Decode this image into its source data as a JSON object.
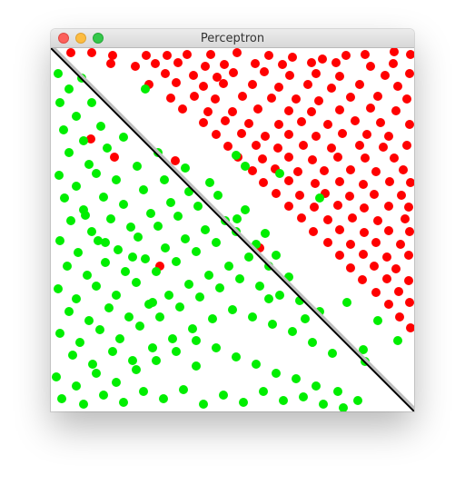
{
  "window": {
    "title": "Perceptron",
    "controls": {
      "close": "close-icon",
      "minimize": "minimize-icon",
      "zoom": "zoom-icon"
    }
  },
  "colors": {
    "class_above": "#ff0000",
    "class_below": "#00ee00",
    "line": "#000000",
    "line_shadow": "#bfbfbf"
  },
  "chart_data": {
    "type": "scatter",
    "title": "",
    "xlabel": "",
    "ylabel": "",
    "xlim": [
      0,
      400
    ],
    "ylim": [
      0,
      400
    ],
    "grid": false,
    "separator": {
      "x": [
        0,
        400
      ],
      "y": [
        400,
        0
      ]
    },
    "series": [
      {
        "class": "above",
        "color": "#ff0000",
        "points": [
          [
            22,
            395
          ],
          [
            45,
            395
          ],
          [
            68,
            392
          ],
          [
            105,
            392
          ],
          [
            128,
            392
          ],
          [
            150,
            393
          ],
          [
            176,
            393
          ],
          [
            205,
            395
          ],
          [
            240,
            392
          ],
          [
            266,
            390
          ],
          [
            299,
            388
          ],
          [
            325,
            392
          ],
          [
            346,
            393
          ],
          [
            378,
            396
          ],
          [
            396,
            393
          ],
          [
            66,
            383
          ],
          [
            93,
            380
          ],
          [
            115,
            383
          ],
          [
            140,
            384
          ],
          [
            170,
            380
          ],
          [
            191,
            382
          ],
          [
            225,
            383
          ],
          [
            255,
            382
          ],
          [
            287,
            384
          ],
          [
            314,
            384
          ],
          [
            352,
            380
          ],
          [
            377,
            383
          ],
          [
            126,
            372
          ],
          [
            157,
            370
          ],
          [
            183,
            368
          ],
          [
            201,
            373
          ],
          [
            235,
            374
          ],
          [
            263,
            370
          ],
          [
            292,
            372
          ],
          [
            318,
            369
          ],
          [
            368,
            370
          ],
          [
            395,
            372
          ],
          [
            108,
            360
          ],
          [
            138,
            362
          ],
          [
            168,
            358
          ],
          [
            190,
            361
          ],
          [
            222,
            360
          ],
          [
            251,
            357
          ],
          [
            283,
            360
          ],
          [
            309,
            356
          ],
          [
            340,
            360
          ],
          [
            382,
            358
          ],
          [
            132,
            345
          ],
          [
            158,
            347
          ],
          [
            181,
            344
          ],
          [
            211,
            347
          ],
          [
            243,
            345
          ],
          [
            270,
            344
          ],
          [
            295,
            342
          ],
          [
            330,
            346
          ],
          [
            360,
            347
          ],
          [
            392,
            344
          ],
          [
            145,
            333
          ],
          [
            173,
            330
          ],
          [
            200,
            330
          ],
          [
            228,
            333
          ],
          [
            262,
            331
          ],
          [
            287,
            330
          ],
          [
            318,
            332
          ],
          [
            352,
            334
          ],
          [
            380,
            331
          ],
          [
            168,
            318
          ],
          [
            192,
            320
          ],
          [
            218,
            317
          ],
          [
            251,
            316
          ],
          [
            276,
            319
          ],
          [
            305,
            316
          ],
          [
            335,
            320
          ],
          [
            363,
            318
          ],
          [
            395,
            316
          ],
          [
            182,
            305
          ],
          [
            210,
            306
          ],
          [
            236,
            303
          ],
          [
            262,
            305
          ],
          [
            292,
            303
          ],
          [
            321,
            306
          ],
          [
            348,
            305
          ],
          [
            372,
            303
          ],
          [
            195,
            292
          ],
          [
            226,
            293
          ],
          [
            250,
            290
          ],
          [
            278,
            293
          ],
          [
            309,
            290
          ],
          [
            340,
            293
          ],
          [
            366,
            291
          ],
          [
            392,
            293
          ],
          [
            206,
            280
          ],
          [
            233,
            278
          ],
          [
            262,
            280
          ],
          [
            288,
            277
          ],
          [
            316,
            280
          ],
          [
            346,
            279
          ],
          [
            378,
            279
          ],
          [
            222,
            265
          ],
          [
            247,
            267
          ],
          [
            272,
            264
          ],
          [
            301,
            265
          ],
          [
            330,
            266
          ],
          [
            358,
            264
          ],
          [
            388,
            266
          ],
          [
            234,
            252
          ],
          [
            262,
            254
          ],
          [
            291,
            251
          ],
          [
            318,
            253
          ],
          [
            344,
            250
          ],
          [
            373,
            253
          ],
          [
            396,
            252
          ],
          [
            248,
            240
          ],
          [
            274,
            238
          ],
          [
            302,
            240
          ],
          [
            329,
            237
          ],
          [
            356,
            239
          ],
          [
            386,
            238
          ],
          [
            262,
            226
          ],
          [
            290,
            225
          ],
          [
            316,
            227
          ],
          [
            345,
            224
          ],
          [
            372,
            226
          ],
          [
            394,
            225
          ],
          [
            276,
            213
          ],
          [
            305,
            211
          ],
          [
            332,
            213
          ],
          [
            360,
            210
          ],
          [
            390,
            212
          ],
          [
            289,
            198
          ],
          [
            318,
            200
          ],
          [
            345,
            197
          ],
          [
            372,
            199
          ],
          [
            395,
            198
          ],
          [
            305,
            186
          ],
          [
            330,
            184
          ],
          [
            358,
            186
          ],
          [
            385,
            184
          ],
          [
            318,
            172
          ],
          [
            344,
            173
          ],
          [
            370,
            170
          ],
          [
            394,
            172
          ],
          [
            330,
            158
          ],
          [
            356,
            160
          ],
          [
            380,
            157
          ],
          [
            343,
            145
          ],
          [
            370,
            146
          ],
          [
            394,
            144
          ],
          [
            358,
            131
          ],
          [
            383,
            132
          ],
          [
            372,
            118
          ],
          [
            395,
            120
          ],
          [
            384,
            104
          ],
          [
            396,
            92
          ],
          [
            44,
            300
          ],
          [
            70,
            280
          ],
          [
            137,
            276
          ],
          [
            230,
            180
          ],
          [
            120,
            160
          ]
        ]
      },
      {
        "class": "below",
        "color": "#00ee00",
        "points": [
          [
            8,
            372
          ],
          [
            20,
            355
          ],
          [
            34,
            367
          ],
          [
            10,
            340
          ],
          [
            28,
            325
          ],
          [
            45,
            340
          ],
          [
            14,
            310
          ],
          [
            36,
            298
          ],
          [
            55,
            314
          ],
          [
            20,
            285
          ],
          [
            42,
            272
          ],
          [
            62,
            290
          ],
          [
            80,
            302
          ],
          [
            9,
            260
          ],
          [
            28,
            248
          ],
          [
            50,
            262
          ],
          [
            72,
            255
          ],
          [
            95,
            270
          ],
          [
            118,
            285
          ],
          [
            15,
            235
          ],
          [
            36,
            222
          ],
          [
            58,
            236
          ],
          [
            80,
            228
          ],
          [
            102,
            244
          ],
          [
            125,
            255
          ],
          [
            148,
            268
          ],
          [
            22,
            210
          ],
          [
            45,
            198
          ],
          [
            66,
            212
          ],
          [
            88,
            203
          ],
          [
            110,
            218
          ],
          [
            132,
            230
          ],
          [
            152,
            242
          ],
          [
            175,
            252
          ],
          [
            10,
            188
          ],
          [
            30,
            175
          ],
          [
            52,
            188
          ],
          [
            74,
            178
          ],
          [
            96,
            192
          ],
          [
            118,
            204
          ],
          [
            140,
            215
          ],
          [
            162,
            226
          ],
          [
            184,
            238
          ],
          [
            205,
            212
          ],
          [
            18,
            160
          ],
          [
            40,
            150
          ],
          [
            60,
            164
          ],
          [
            82,
            154
          ],
          [
            104,
            168
          ],
          [
            126,
            180
          ],
          [
            148,
            190
          ],
          [
            170,
            200
          ],
          [
            192,
            210
          ],
          [
            214,
            222
          ],
          [
            236,
            196
          ],
          [
            8,
            135
          ],
          [
            28,
            124
          ],
          [
            50,
            138
          ],
          [
            72,
            128
          ],
          [
            94,
            142
          ],
          [
            116,
            154
          ],
          [
            138,
            165
          ],
          [
            160,
            176
          ],
          [
            182,
            186
          ],
          [
            204,
            198
          ],
          [
            226,
            184
          ],
          [
            248,
            172
          ],
          [
            20,
            110
          ],
          [
            42,
            100
          ],
          [
            64,
            114
          ],
          [
            86,
            104
          ],
          [
            108,
            118
          ],
          [
            130,
            128
          ],
          [
            152,
            140
          ],
          [
            174,
            150
          ],
          [
            196,
            160
          ],
          [
            218,
            170
          ],
          [
            240,
            160
          ],
          [
            262,
            148
          ],
          [
            10,
            86
          ],
          [
            32,
            76
          ],
          [
            54,
            90
          ],
          [
            76,
            80
          ],
          [
            98,
            94
          ],
          [
            120,
            104
          ],
          [
            142,
            115
          ],
          [
            164,
            126
          ],
          [
            186,
            136
          ],
          [
            208,
            146
          ],
          [
            230,
            138
          ],
          [
            252,
            128
          ],
          [
            274,
            122
          ],
          [
            296,
            110
          ],
          [
            24,
            62
          ],
          [
            46,
            52
          ],
          [
            68,
            66
          ],
          [
            90,
            56
          ],
          [
            112,
            70
          ],
          [
            134,
            80
          ],
          [
            156,
            91
          ],
          [
            178,
            102
          ],
          [
            200,
            112
          ],
          [
            222,
            104
          ],
          [
            244,
            96
          ],
          [
            266,
            88
          ],
          [
            288,
            76
          ],
          [
            310,
            64
          ],
          [
            6,
            38
          ],
          [
            28,
            28
          ],
          [
            50,
            42
          ],
          [
            72,
            32
          ],
          [
            94,
            46
          ],
          [
            116,
            56
          ],
          [
            138,
            66
          ],
          [
            160,
            78
          ],
          [
            182,
            70
          ],
          [
            204,
            60
          ],
          [
            226,
            52
          ],
          [
            248,
            42
          ],
          [
            270,
            36
          ],
          [
            292,
            28
          ],
          [
            316,
            22
          ],
          [
            338,
            12
          ],
          [
            12,
            14
          ],
          [
            36,
            8
          ],
          [
            58,
            18
          ],
          [
            80,
            10
          ],
          [
            102,
            22
          ],
          [
            124,
            14
          ],
          [
            146,
            24
          ],
          [
            168,
            8
          ],
          [
            190,
            18
          ],
          [
            212,
            10
          ],
          [
            234,
            22
          ],
          [
            256,
            12
          ],
          [
            278,
            16
          ],
          [
            300,
            8
          ],
          [
            322,
            4
          ],
          [
            346,
            55
          ],
          [
            382,
            78
          ],
          [
            360,
            100
          ],
          [
            296,
            235
          ],
          [
            252,
            262
          ],
          [
            214,
            270
          ],
          [
            104,
            355
          ],
          [
            204,
            282
          ],
          [
            280,
            102
          ],
          [
            240,
            124
          ],
          [
            160,
            50
          ],
          [
            112,
            120
          ],
          [
            60,
            186
          ],
          [
            38,
            216
          ],
          [
            90,
            170
          ],
          [
            326,
            120
          ],
          [
            344,
            68
          ]
        ]
      }
    ]
  }
}
